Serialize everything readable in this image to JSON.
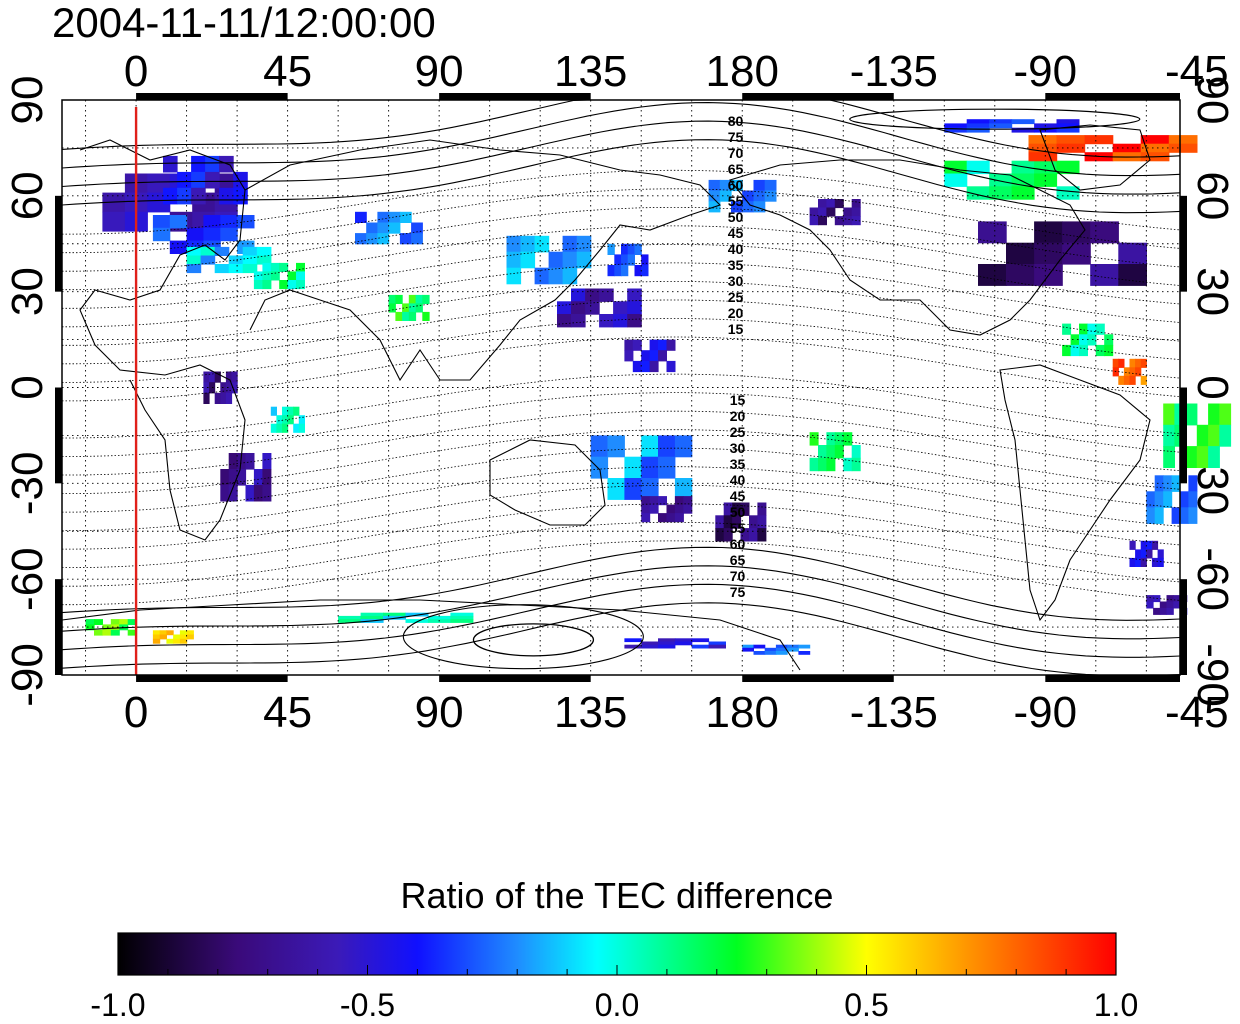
{
  "timestamp": "2004-11-11/12:00:00",
  "map": {
    "lon_range": [
      -22,
      310
    ],
    "lat_range": [
      -90,
      90
    ],
    "x_ticks": [
      {
        "lon": 0,
        "label": "0"
      },
      {
        "lon": 45,
        "label": "45"
      },
      {
        "lon": 90,
        "label": "90"
      },
      {
        "lon": 135,
        "label": "135"
      },
      {
        "lon": 180,
        "label": "180"
      },
      {
        "lon": 225,
        "label": "-135"
      },
      {
        "lon": 270,
        "label": "-90"
      },
      {
        "lon": 315,
        "label": "-45"
      }
    ],
    "y_ticks": [
      {
        "lat": 90,
        "label": "90"
      },
      {
        "lat": 60,
        "label": "60"
      },
      {
        "lat": 30,
        "label": "30"
      },
      {
        "lat": 0,
        "label": "0"
      },
      {
        "lat": -30,
        "label": "-30"
      },
      {
        "lat": -60,
        "label": "-60"
      },
      {
        "lat": -90,
        "label": "-90"
      }
    ],
    "marker_lon": 0,
    "marker_color": "#e0201a",
    "contour_labels_north": [
      "80",
      "75",
      "70",
      "65",
      "60",
      "55",
      "50",
      "45",
      "40",
      "35",
      "30",
      "25",
      "20",
      "15"
    ],
    "contour_labels_south": [
      "15",
      "20",
      "25",
      "30",
      "35",
      "40",
      "45",
      "50",
      "55",
      "60",
      "65",
      "70",
      "75"
    ]
  },
  "colorbar": {
    "title": "Ratio of the TEC difference",
    "range": [
      -1.0,
      1.0
    ],
    "tick_labels": [
      "-1.0",
      "-0.5",
      "0.0",
      "0.5",
      "1.0"
    ]
  },
  "data_patches": [
    {
      "lon": -10,
      "lat": 58,
      "w": 40,
      "h": 18,
      "v": -0.55
    },
    {
      "lon": 8,
      "lat": 65,
      "w": 25,
      "h": 15,
      "v": -0.45
    },
    {
      "lon": 5,
      "lat": 48,
      "w": 30,
      "h": 12,
      "v": -0.3
    },
    {
      "lon": 15,
      "lat": 40,
      "w": 25,
      "h": 8,
      "v": -0.1
    },
    {
      "lon": 35,
      "lat": 35,
      "w": 15,
      "h": 8,
      "v": 0.1
    },
    {
      "lon": 65,
      "lat": 50,
      "w": 20,
      "h": 10,
      "v": -0.25
    },
    {
      "lon": 75,
      "lat": 25,
      "w": 12,
      "h": 8,
      "v": 0.2
    },
    {
      "lon": 110,
      "lat": 40,
      "w": 25,
      "h": 15,
      "v": -0.2
    },
    {
      "lon": 125,
      "lat": 25,
      "w": 25,
      "h": 12,
      "v": -0.6
    },
    {
      "lon": 140,
      "lat": 40,
      "w": 12,
      "h": 10,
      "v": -0.3
    },
    {
      "lon": 145,
      "lat": 10,
      "w": 15,
      "h": 10,
      "v": -0.5
    },
    {
      "lon": 170,
      "lat": 60,
      "w": 20,
      "h": 10,
      "v": -0.2
    },
    {
      "lon": 200,
      "lat": 55,
      "w": 15,
      "h": 8,
      "v": -0.7
    },
    {
      "lon": 250,
      "lat": 42,
      "w": 50,
      "h": 20,
      "v": -0.75
    },
    {
      "lon": 240,
      "lat": 65,
      "w": 40,
      "h": 12,
      "v": 0.1
    },
    {
      "lon": 265,
      "lat": 75,
      "w": 50,
      "h": 8,
      "v": 0.9
    },
    {
      "lon": 240,
      "lat": 82,
      "w": 40,
      "h": 4,
      "v": -0.4
    },
    {
      "lon": 275,
      "lat": 15,
      "w": 15,
      "h": 10,
      "v": 0.1
    },
    {
      "lon": 290,
      "lat": 5,
      "w": 10,
      "h": 8,
      "v": 0.8
    },
    {
      "lon": 305,
      "lat": -15,
      "w": 20,
      "h": 20,
      "v": 0.2
    },
    {
      "lon": 300,
      "lat": -35,
      "w": 15,
      "h": 15,
      "v": -0.2
    },
    {
      "lon": 295,
      "lat": -52,
      "w": 10,
      "h": 8,
      "v": -0.5
    },
    {
      "lon": 300,
      "lat": -68,
      "w": 12,
      "h": 6,
      "v": -0.6
    },
    {
      "lon": 20,
      "lat": 0,
      "w": 10,
      "h": 10,
      "v": -0.7
    },
    {
      "lon": 25,
      "lat": -28,
      "w": 15,
      "h": 15,
      "v": -0.65
    },
    {
      "lon": 40,
      "lat": -10,
      "w": 10,
      "h": 8,
      "v": 0.0
    },
    {
      "lon": 135,
      "lat": -25,
      "w": 30,
      "h": 20,
      "v": -0.2
    },
    {
      "lon": 150,
      "lat": -38,
      "w": 15,
      "h": 8,
      "v": -0.7
    },
    {
      "lon": 172,
      "lat": -42,
      "w": 15,
      "h": 12,
      "v": -0.75
    },
    {
      "lon": 200,
      "lat": -20,
      "w": 15,
      "h": 12,
      "v": 0.15
    },
    {
      "lon": -15,
      "lat": -75,
      "w": 15,
      "h": 5,
      "v": 0.3
    },
    {
      "lon": 5,
      "lat": -78,
      "w": 12,
      "h": 4,
      "v": 0.6
    },
    {
      "lon": 60,
      "lat": -72,
      "w": 40,
      "h": 3,
      "v": 0.0
    },
    {
      "lon": 145,
      "lat": -80,
      "w": 30,
      "h": 3,
      "v": -0.45
    },
    {
      "lon": 180,
      "lat": -82,
      "w": 20,
      "h": 3,
      "v": -0.3
    }
  ]
}
